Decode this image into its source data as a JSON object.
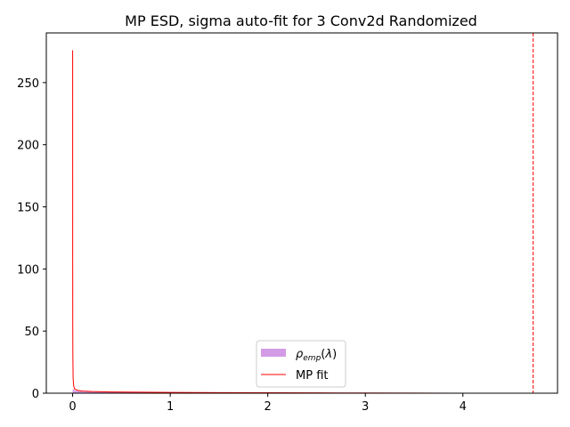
{
  "chart_data": {
    "type": "line",
    "title": "MP ESD, sigma auto-fit for 3 Conv2d Randomized",
    "xlabel": "",
    "ylabel": "",
    "xlim": [
      -0.27,
      4.97
    ],
    "ylim": [
      0,
      290
    ],
    "x_ticks": [
      0,
      1,
      2,
      3,
      4
    ],
    "y_ticks": [
      0,
      50,
      100,
      150,
      200,
      250
    ],
    "x_tick_labels": [
      "0",
      "1",
      "2",
      "3",
      "4"
    ],
    "y_tick_labels": [
      "0",
      "50",
      "100",
      "150",
      "200",
      "250"
    ],
    "legend_placement": "lower-center",
    "series": [
      {
        "name": "ρemp(λ)",
        "kind": "histogram",
        "color": "#d39be6",
        "x": [
          0.0,
          0.02,
          0.05,
          0.1,
          0.2,
          0.4,
          0.8,
          1.2,
          2.0,
          3.0,
          3.9
        ],
        "values": [
          3.0,
          2.0,
          1.5,
          1.2,
          1.0,
          0.8,
          0.5,
          0.4,
          0.3,
          0.2,
          0.1
        ]
      },
      {
        "name": "MP fit",
        "kind": "line",
        "color": "#ff0000",
        "x": [
          0.0,
          0.0005,
          0.001,
          0.002,
          0.005,
          0.01,
          0.02,
          0.05,
          0.1,
          0.2,
          0.4,
          0.7,
          1.0,
          1.5,
          2.0,
          2.5,
          3.0,
          3.5,
          3.9
        ],
        "values": [
          276,
          120,
          60,
          30,
          12,
          6,
          3.5,
          2.2,
          1.7,
          1.3,
          1.0,
          0.8,
          0.6,
          0.45,
          0.35,
          0.25,
          0.18,
          0.1,
          0.0
        ]
      }
    ],
    "annotations": [
      {
        "type": "vline",
        "x": 4.72,
        "color": "#ff0000",
        "style": "dashed"
      }
    ]
  }
}
